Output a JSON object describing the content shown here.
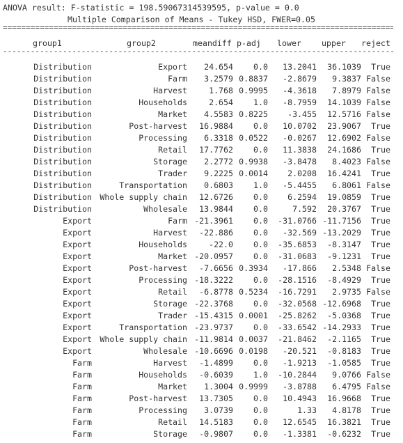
{
  "header": {
    "anova_line": "ANOVA result: F-statistic = 198.59067314539595, p-value = 0.0",
    "tukey_title": "Multiple Comparison of Means - Tukey HSD, FWER=0.05"
  },
  "rules": {
    "double": "===================================================================================================",
    "single": "---------------------------------------------------------------------------------------------------"
  },
  "columns": {
    "group1": "group1",
    "group2": "group2",
    "meandiff": "meandiff",
    "p_adj": "p-adj",
    "lower": "lower",
    "upper": "upper",
    "reject": "reject"
  },
  "rows": [
    [
      "Distribution",
      "Export",
      "24.654",
      "0.0",
      "13.2041",
      "36.1039",
      "True"
    ],
    [
      "Distribution",
      "Farm",
      "3.2579",
      "0.8837",
      "-2.8679",
      "9.3837",
      "False"
    ],
    [
      "Distribution",
      "Harvest",
      "1.768",
      "0.9995",
      "-4.3618",
      "7.8979",
      "False"
    ],
    [
      "Distribution",
      "Households",
      "2.654",
      "1.0",
      "-8.7959",
      "14.1039",
      "False"
    ],
    [
      "Distribution",
      "Market",
      "4.5583",
      "0.8225",
      "-3.455",
      "12.5716",
      "False"
    ],
    [
      "Distribution",
      "Post-harvest",
      "16.9884",
      "0.0",
      "10.0702",
      "23.9067",
      "True"
    ],
    [
      "Distribution",
      "Processing",
      "6.3318",
      "0.0522",
      "-0.0267",
      "12.6902",
      "False"
    ],
    [
      "Distribution",
      "Retail",
      "17.7762",
      "0.0",
      "11.3838",
      "24.1686",
      "True"
    ],
    [
      "Distribution",
      "Storage",
      "2.2772",
      "0.9938",
      "-3.8478",
      "8.4023",
      "False"
    ],
    [
      "Distribution",
      "Trader",
      "9.2225",
      "0.0014",
      "2.0208",
      "16.4241",
      "True"
    ],
    [
      "Distribution",
      "Transportation",
      "0.6803",
      "1.0",
      "-5.4455",
      "6.8061",
      "False"
    ],
    [
      "Distribution",
      "Whole supply chain",
      "12.6726",
      "0.0",
      "6.2594",
      "19.0859",
      "True"
    ],
    [
      "Distribution",
      "Wholesale",
      "13.9844",
      "0.0",
      "7.592",
      "20.3767",
      "True"
    ],
    [
      "Export",
      "Farm",
      "-21.3961",
      "0.0",
      "-31.0766",
      "-11.7156",
      "True"
    ],
    [
      "Export",
      "Harvest",
      "-22.886",
      "0.0",
      "-32.569",
      "-13.2029",
      "True"
    ],
    [
      "Export",
      "Households",
      "-22.0",
      "0.0",
      "-35.6853",
      "-8.3147",
      "True"
    ],
    [
      "Export",
      "Market",
      "-20.0957",
      "0.0",
      "-31.0683",
      "-9.1231",
      "True"
    ],
    [
      "Export",
      "Post-harvest",
      "-7.6656",
      "0.3934",
      "-17.866",
      "2.5348",
      "False"
    ],
    [
      "Export",
      "Processing",
      "-18.3222",
      "0.0",
      "-28.1516",
      "-8.4929",
      "True"
    ],
    [
      "Export",
      "Retail",
      "-6.8778",
      "0.5234",
      "-16.7291",
      "2.9735",
      "False"
    ],
    [
      "Export",
      "Storage",
      "-22.3768",
      "0.0",
      "-32.0568",
      "-12.6968",
      "True"
    ],
    [
      "Export",
      "Trader",
      "-15.4315",
      "0.0001",
      "-25.8262",
      "-5.0368",
      "True"
    ],
    [
      "Export",
      "Transportation",
      "-23.9737",
      "0.0",
      "-33.6542",
      "-14.2933",
      "True"
    ],
    [
      "Export",
      "Whole supply chain",
      "-11.9814",
      "0.0037",
      "-21.8462",
      "-2.1165",
      "True"
    ],
    [
      "Export",
      "Wholesale",
      "-10.6696",
      "0.0198",
      "-20.521",
      "-0.8183",
      "True"
    ],
    [
      "Farm",
      "Harvest",
      "-1.4899",
      "0.0",
      "-1.9213",
      "-1.0585",
      "True"
    ],
    [
      "Farm",
      "Households",
      "-0.6039",
      "1.0",
      "-10.2844",
      "9.0766",
      "False"
    ],
    [
      "Farm",
      "Market",
      "1.3004",
      "0.9999",
      "-3.8788",
      "6.4795",
      "False"
    ],
    [
      "Farm",
      "Post-harvest",
      "13.7305",
      "0.0",
      "10.4943",
      "16.9668",
      "True"
    ],
    [
      "Farm",
      "Processing",
      "3.0739",
      "0.0",
      "1.33",
      "4.8178",
      "True"
    ],
    [
      "Farm",
      "Retail",
      "14.5183",
      "0.0",
      "12.6545",
      "16.3821",
      "True"
    ],
    [
      "Farm",
      "Storage",
      "-0.9807",
      "0.0",
      "-1.3381",
      "-0.6232",
      "True"
    ]
  ]
}
